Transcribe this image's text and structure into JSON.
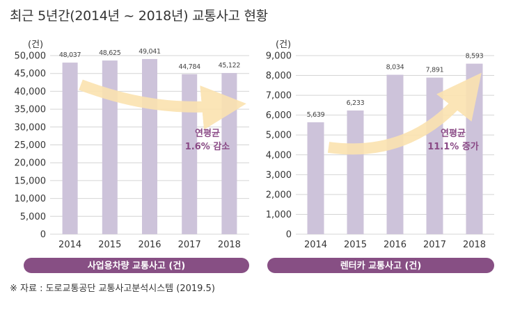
{
  "title": "최근 5년간(2014년 ~ 2018년) 교통사고 현황",
  "source": "※ 자료 : 도로교통공단 교통사고분석시스템 (2019.5)",
  "colors": {
    "bar": "#cdc3da",
    "grid": "#d4d4d4",
    "banner": "#874f84",
    "banner_text": "#ffffff",
    "annotation": "#8a4a86",
    "arrow": "#fbe3b0"
  },
  "chart_data": [
    {
      "type": "bar",
      "unit_label": "(건)",
      "categories": [
        "2014",
        "2015",
        "2016",
        "2017",
        "2018"
      ],
      "values": [
        48037,
        48625,
        49041,
        44784,
        45122
      ],
      "value_labels": [
        "48,037",
        "48,625",
        "49,041",
        "44,784",
        "45,122"
      ],
      "y_ticks": [
        "0",
        "5,000",
        "10,000",
        "15,000",
        "20,000",
        "25,000",
        "30,000",
        "35,000",
        "40,000",
        "45,000",
        "50,000"
      ],
      "ylim": [
        0,
        50000
      ],
      "grid": true,
      "annotation": [
        "연평균",
        "1.6% 감소"
      ],
      "trend": "decrease",
      "caption": "사업용차량 교통사고 (건)"
    },
    {
      "type": "bar",
      "unit_label": "(건)",
      "categories": [
        "2014",
        "2015",
        "2016",
        "2017",
        "2018"
      ],
      "values": [
        5639,
        6233,
        8034,
        7891,
        8593
      ],
      "value_labels": [
        "5,639",
        "6,233",
        "8,034",
        "7,891",
        "8,593"
      ],
      "y_ticks": [
        "0",
        "1,000",
        "2,000",
        "3,000",
        "4,000",
        "5,000",
        "6,000",
        "7,000",
        "8,000",
        "9,000"
      ],
      "ylim": [
        0,
        9000
      ],
      "grid": true,
      "annotation": [
        "연평균",
        "11.1% 증가"
      ],
      "trend": "increase",
      "caption": "렌터카 교통사고 (건)"
    }
  ]
}
